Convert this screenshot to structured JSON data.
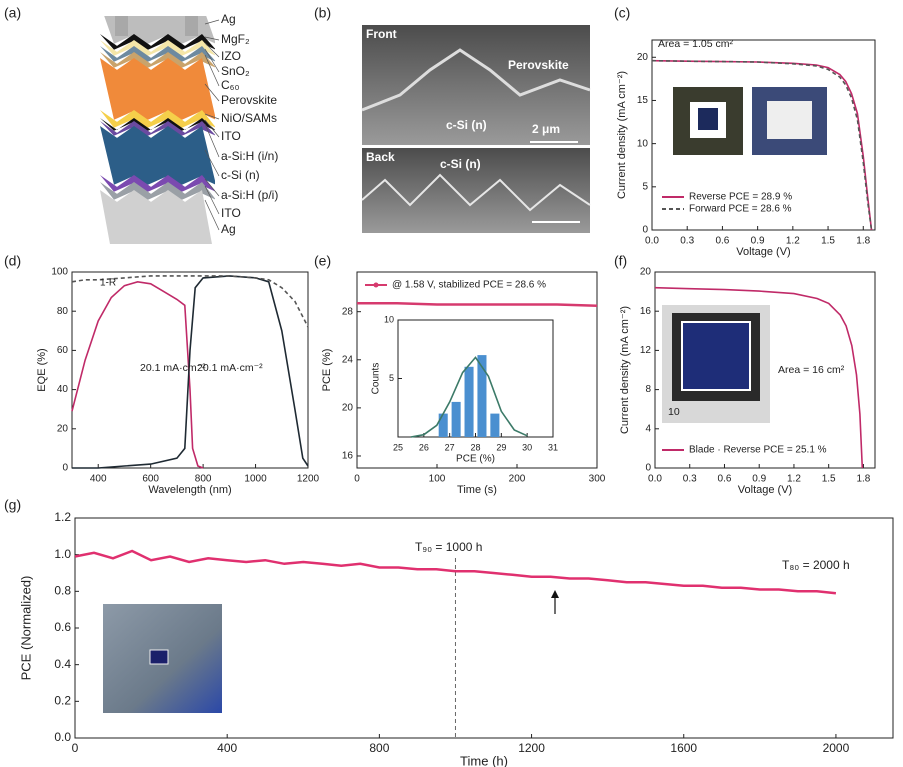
{
  "panel_labels": [
    "(a)",
    "(b)",
    "(c)",
    "(d)",
    "(e)",
    "(f)",
    "(g)"
  ],
  "layer_stack": {
    "labels": [
      "Ag",
      "MgF₂",
      "IZO",
      "SnO₂",
      "C₆₀",
      "Perovskite",
      "NiO/SAMs",
      "ITO",
      "a-Si:H (i/n)",
      "c-Si (n)",
      "a-Si:H (p/i)",
      "ITO",
      "Ag"
    ]
  },
  "sem": {
    "front": "Front",
    "perovskite": "Perovskite",
    "front_si": "c-Si (n)",
    "scale": "2 μm",
    "back": "Back",
    "back_si": "c-Si (n)"
  },
  "chart_data": [
    {
      "type": "line",
      "xlabel": "Voltage (V)",
      "ylabel": "Current density (mA cm⁻²)",
      "xlim": [
        0,
        1.9
      ],
      "ylim": [
        0,
        22
      ],
      "xticks": [
        {
          "value": 0,
          "label": "0.0"
        },
        0.3,
        0.6,
        0.9,
        1.2,
        1.5,
        1.8
      ],
      "yticks": [
        0,
        5,
        10,
        15,
        20
      ],
      "annotations": [
        "Area = 1.05 cm²"
      ],
      "legend": "lower left",
      "series": [
        {
          "name": "Reverse PCE = 28.9 %",
          "color": "#c02a68",
          "style": "solid",
          "x": [
            0,
            0.3,
            0.6,
            0.9,
            1.2,
            1.4,
            1.5,
            1.6,
            1.65,
            1.7,
            1.75,
            1.8,
            1.84,
            1.87
          ],
          "values": [
            19.6,
            19.55,
            19.5,
            19.45,
            19.3,
            19.1,
            18.8,
            18.0,
            17.2,
            15.8,
            13.5,
            8.5,
            3.5,
            0
          ]
        },
        {
          "name": "Forward PCE = 28.6 %",
          "color": "#555555",
          "style": "dashed",
          "x": [
            0,
            0.3,
            0.6,
            0.9,
            1.2,
            1.4,
            1.5,
            1.6,
            1.65,
            1.7,
            1.75,
            1.8,
            1.84,
            1.87
          ],
          "values": [
            19.6,
            19.55,
            19.5,
            19.45,
            19.25,
            19.0,
            18.6,
            17.7,
            16.8,
            15.3,
            12.8,
            7.8,
            3.0,
            0
          ]
        }
      ]
    },
    {
      "type": "line",
      "xlabel": "Wavelength (nm)",
      "ylabel": "EQE (%)",
      "xlim": [
        300,
        1200
      ],
      "ylim": [
        0,
        100
      ],
      "xticks": [
        400,
        600,
        800,
        1000,
        1200
      ],
      "yticks": [
        0,
        20,
        40,
        60,
        80,
        100
      ],
      "annotations": [
        "20.1 mA·cm⁻²",
        "20.1 mA·cm⁻²"
      ],
      "series": [
        {
          "color": "#c02a68",
          "style": "solid",
          "x": [
            300,
            350,
            400,
            450,
            500,
            550,
            600,
            650,
            700,
            730,
            750,
            760,
            780,
            800
          ],
          "values": [
            29,
            55,
            75,
            87,
            93,
            95,
            94,
            90,
            86,
            83,
            40,
            10,
            1,
            0
          ]
        },
        {
          "color": "#1f2a33",
          "style": "solid",
          "x": [
            300,
            400,
            500,
            600,
            700,
            730,
            750,
            770,
            800,
            900,
            1000,
            1050,
            1100,
            1150,
            1180,
            1200
          ],
          "values": [
            0,
            0,
            1,
            2,
            5,
            10,
            60,
            92,
            97,
            98,
            97,
            95,
            70,
            30,
            5,
            1
          ]
        },
        {
          "name": "1-R",
          "color": "#555555",
          "style": "dashed",
          "x": [
            300,
            350,
            400,
            500,
            600,
            700,
            800,
            900,
            1000,
            1050,
            1100,
            1150,
            1200
          ],
          "values": [
            95,
            96,
            96,
            97,
            98,
            98,
            98,
            98,
            97,
            96,
            92,
            85,
            72
          ]
        }
      ]
    },
    {
      "type": "line",
      "xlabel": "Time (s)",
      "ylabel": "PCE (%)",
      "xlim": [
        0,
        300
      ],
      "ylim": [
        15,
        31.3
      ],
      "xticks": [
        0,
        100,
        200,
        300
      ],
      "yticks": [
        16,
        20,
        24,
        28
      ],
      "legend": "upper left",
      "series": [
        {
          "name": "@ 1.58 V, stabilized PCE = 28.6 %",
          "color": "#d63a6e",
          "style": "solid",
          "x": [
            0,
            50,
            100,
            150,
            200,
            250,
            300
          ],
          "values": [
            28.7,
            28.7,
            28.6,
            28.6,
            28.6,
            28.6,
            28.5
          ]
        }
      ]
    },
    {
      "type": "histogram",
      "xlabel": "PCE (%)",
      "ylabel": "Counts",
      "xlim": [
        25,
        31
      ],
      "ylim": [
        0,
        10
      ],
      "xticks": [
        25,
        26,
        27,
        28,
        29,
        30,
        31
      ],
      "yticks": [
        5,
        10
      ],
      "bins": [
        26.5,
        27,
        27.5,
        28,
        28.5,
        29
      ],
      "counts": [
        2,
        3,
        6,
        7,
        2
      ],
      "color": "#4a8fd0",
      "series": [
        {
          "color": "#3c7a68",
          "style": "solid",
          "x": [
            25.5,
            26,
            26.5,
            27,
            27.5,
            28,
            28.5,
            29,
            29.5,
            30
          ],
          "values": [
            0,
            0.2,
            1,
            3,
            5.5,
            6.8,
            5.2,
            2.2,
            0.6,
            0.1
          ]
        }
      ]
    },
    {
      "type": "line",
      "xlabel": "Voltage (V)",
      "ylabel": "Current density (mA cm⁻²)",
      "xlim": [
        0,
        1.9
      ],
      "ylim": [
        0,
        20
      ],
      "xticks": [
        {
          "value": 0,
          "label": "0.0"
        },
        0.3,
        0.6,
        0.9,
        1.2,
        1.5,
        1.8
      ],
      "yticks": [
        0,
        4,
        8,
        12,
        16,
        20
      ],
      "annotations": [
        "Area = 16 cm²",
        "10"
      ],
      "legend": "lower left",
      "series": [
        {
          "name": "Blade · Reverse PCE = 25.1 %",
          "color": "#c02a68",
          "style": "solid",
          "x": [
            0,
            0.3,
            0.6,
            0.9,
            1.2,
            1.4,
            1.5,
            1.6,
            1.65,
            1.7,
            1.74,
            1.77,
            1.79
          ],
          "values": [
            18.4,
            18.3,
            18.2,
            18.05,
            17.8,
            17.3,
            16.8,
            15.6,
            14.5,
            12.5,
            9.5,
            5.5,
            0
          ]
        }
      ]
    },
    {
      "type": "line",
      "xlabel": "Time (h)",
      "ylabel": "PCE (Normalized)",
      "xlim": [
        0,
        2150
      ],
      "ylim": [
        0,
        1.2
      ],
      "xticks": [
        0,
        400,
        800,
        1200,
        1600,
        2000
      ],
      "yticks": [
        {
          "value": 0,
          "label": "0.0"
        },
        0.2,
        0.4,
        0.6,
        0.8,
        {
          "value": 1,
          "label": "1.0"
        },
        1.2
      ],
      "annotations": [
        "T₉₀ = 1000 h",
        "T₈₀ = 2000 h"
      ],
      "vlines": [
        1000
      ],
      "series": [
        {
          "color": "#e0306f",
          "style": "solid",
          "x": [
            0,
            50,
            100,
            150,
            200,
            250,
            300,
            350,
            400,
            450,
            500,
            550,
            600,
            650,
            700,
            750,
            800,
            850,
            900,
            950,
            1000,
            1050,
            1100,
            1150,
            1200,
            1250,
            1300,
            1350,
            1400,
            1450,
            1500,
            1550,
            1600,
            1650,
            1700,
            1750,
            1800,
            1850,
            1900,
            1950,
            2000
          ],
          "values": [
            0.99,
            1.01,
            0.98,
            1.02,
            0.97,
            0.99,
            0.96,
            0.98,
            0.97,
            0.96,
            0.97,
            0.95,
            0.96,
            0.95,
            0.94,
            0.95,
            0.93,
            0.93,
            0.92,
            0.92,
            0.91,
            0.91,
            0.9,
            0.89,
            0.88,
            0.88,
            0.87,
            0.87,
            0.86,
            0.85,
            0.85,
            0.84,
            0.83,
            0.83,
            0.82,
            0.82,
            0.81,
            0.81,
            0.8,
            0.8,
            0.79
          ]
        }
      ]
    }
  ]
}
